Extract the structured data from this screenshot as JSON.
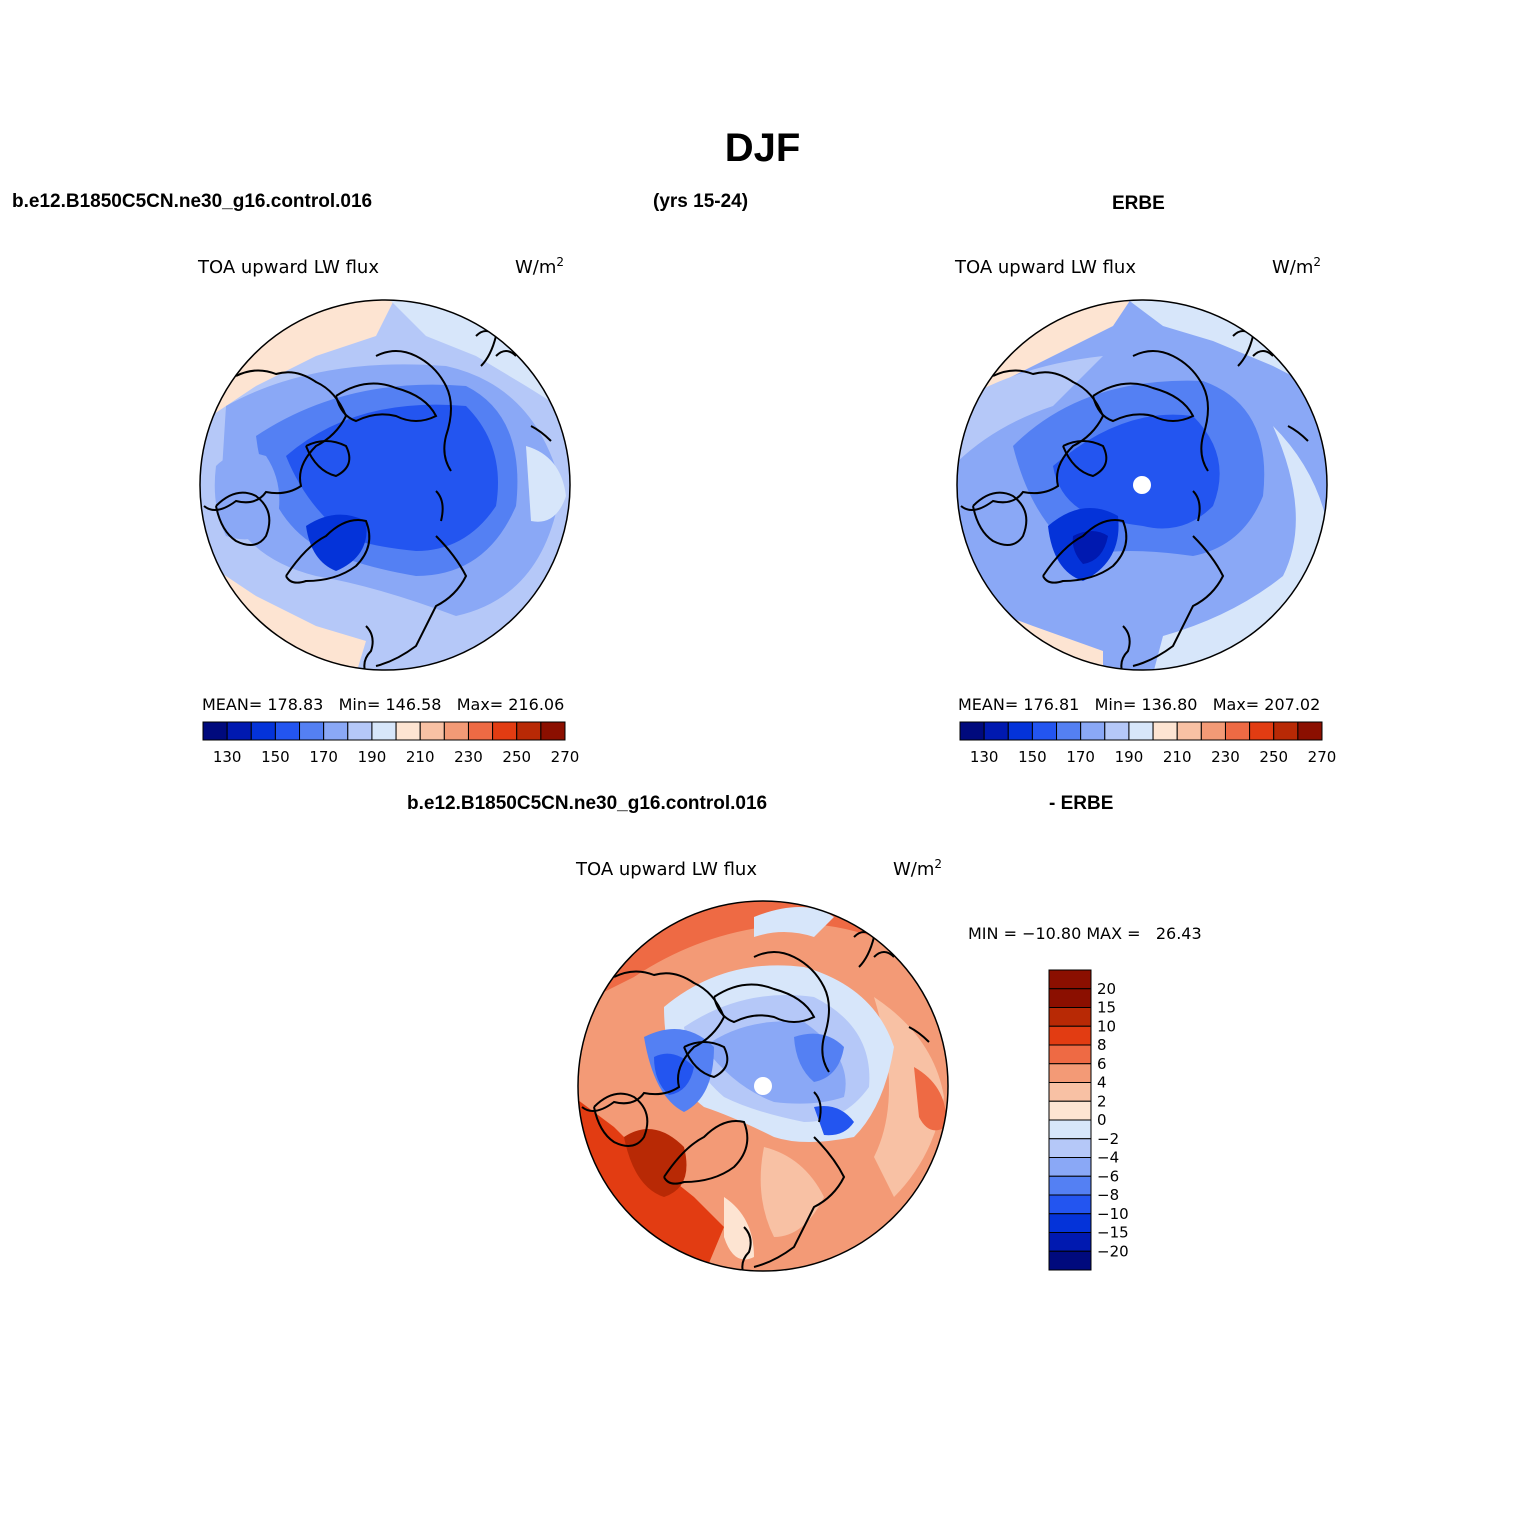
{
  "page": {
    "title": "DJF",
    "case_name": "b.e12.B1850C5CN.ne30_g16.control.016",
    "years": "(yrs 15-24)",
    "obs_name": "ERBE",
    "diff_case": "b.e12.B1850C5CN.ne30_g16.control.016",
    "diff_obs": "- ERBE"
  },
  "colors": {
    "abs_palette": [
      "#000a7d",
      "#0019b0",
      "#0433d9",
      "#2355f0",
      "#5480f3",
      "#8aa8f6",
      "#b5c8f8",
      "#d7e6fa",
      "#fde4d2",
      "#f8c1a4",
      "#f39a76",
      "#ee6a44",
      "#e23c12",
      "#b82905",
      "#8b0f00"
    ],
    "diff_palette": [
      "#000a7d",
      "#0019b0",
      "#0433d9",
      "#2355f0",
      "#5480f3",
      "#8aa8f6",
      "#b5c8f8",
      "#d7e6fa",
      "#fde4d2",
      "#f8c1a4",
      "#f39a76",
      "#ee6a44",
      "#e23c12",
      "#b82905",
      "#8b0f00"
    ]
  },
  "panels": {
    "model": {
      "field": "TOA upward LW flux",
      "units": "W/m",
      "units_sup": "2",
      "mean_label": "MEAN=",
      "mean": "178.83",
      "min_label": "Min=",
      "min": "146.58",
      "max_label": "Max=",
      "max": "216.06",
      "colorbar_ticks": [
        "130",
        "150",
        "170",
        "190",
        "210",
        "230",
        "250",
        "270"
      ]
    },
    "obs": {
      "field": "TOA upward LW flux",
      "units": "W/m",
      "units_sup": "2",
      "mean_label": "MEAN=",
      "mean": "176.81",
      "min_label": "Min=",
      "min": "136.80",
      "max_label": "Max=",
      "max": "207.02",
      "colorbar_ticks": [
        "130",
        "150",
        "170",
        "190",
        "210",
        "230",
        "250",
        "270"
      ]
    },
    "diff": {
      "field": "TOA upward LW flux",
      "units": "W/m",
      "units_sup": "2",
      "minmax_text": "MIN = −10.80 MAX =   26.43",
      "colorbar_ticks": [
        "20",
        "15",
        "10",
        "8",
        "6",
        "4",
        "2",
        "0",
        "−2",
        "−4",
        "−6",
        "−8",
        "−10",
        "−15",
        "−20"
      ]
    }
  }
}
